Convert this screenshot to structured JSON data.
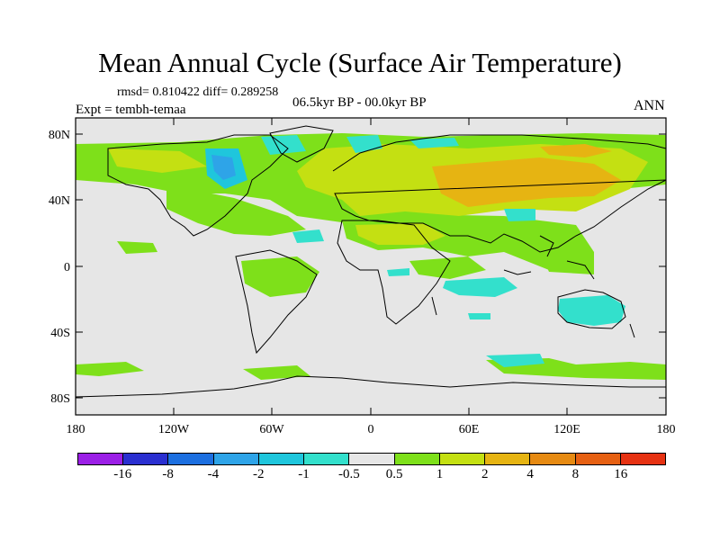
{
  "figure": {
    "title": "Mean Annual Cycle (Surface Air Temperature)",
    "stats": "rmsd= 0.810422 diff= 0.289258",
    "period": "06.5kyr BP - 00.0kyr BP",
    "experiment": "Expt = tembh-temaa",
    "season": "ANN"
  },
  "axes": {
    "lat_ticks": [
      "80N",
      "40N",
      "0",
      "40S",
      "80S"
    ],
    "lon_ticks": [
      "180",
      "120W",
      "60W",
      "0",
      "60E",
      "120E",
      "180"
    ]
  },
  "legend": {
    "colors": [
      "#9b1fe6",
      "#2a2fd0",
      "#1c6fe0",
      "#2ea4e8",
      "#1fc6dc",
      "#33e0cc",
      "#e6e6e6",
      "#7ee01a",
      "#c4e012",
      "#e6b412",
      "#e68a12",
      "#e66012",
      "#e63212"
    ],
    "labels": [
      "-16",
      "-8",
      "-4",
      "-2",
      "-1",
      "-0.5",
      "0.5",
      "1",
      "2",
      "4",
      "8",
      "16"
    ]
  },
  "colors": {
    "neutral": "#e6e6e6",
    "light_warm": "#7ee01a",
    "warm": "#c4e012",
    "warmer": "#e6b412",
    "cool": "#33e0cc",
    "cooler": "#1fc6dc",
    "coolest": "#2ea4e8"
  }
}
